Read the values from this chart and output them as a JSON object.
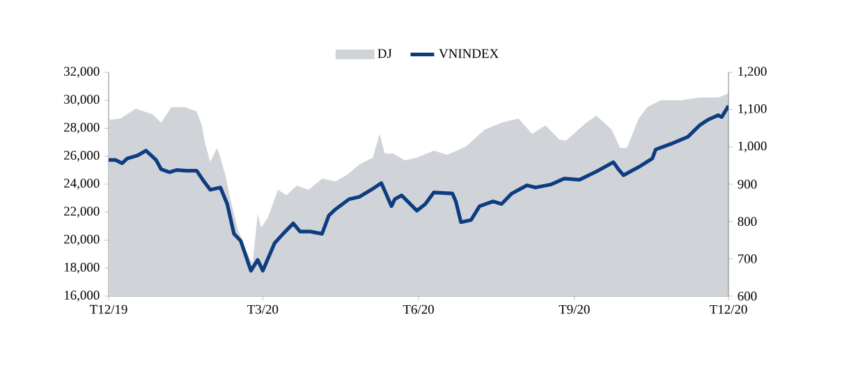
{
  "chart_data": {
    "type": "line",
    "legend": "top",
    "marker": "none",
    "line_style": "solid",
    "xlim": [
      "2019-12",
      "2020-12"
    ],
    "xticks": [
      {
        "value": "2019-12",
        "label": "T12/19"
      },
      {
        "value": "2020-03",
        "label": "T3/20"
      },
      {
        "value": "2020-06",
        "label": "T6/20"
      },
      {
        "value": "2020-09",
        "label": "T9/20"
      },
      {
        "value": "2020-12",
        "label": "T12/20"
      }
    ],
    "ylim": [
      16000,
      32000
    ],
    "yticks": [
      {
        "value": 16000,
        "label": "16,000"
      },
      {
        "value": 18000,
        "label": "18,000"
      },
      {
        "value": 20000,
        "label": "20,000"
      },
      {
        "value": 22000,
        "label": "22,000"
      },
      {
        "value": 24000,
        "label": "24,000"
      },
      {
        "value": 26000,
        "label": "26,000"
      },
      {
        "value": 28000,
        "label": "28,000"
      },
      {
        "value": 30000,
        "label": "30,000"
      },
      {
        "value": 32000,
        "label": "32,000"
      }
    ],
    "y2lim": [
      600,
      1200
    ],
    "y2ticks": [
      600,
      700,
      800,
      900,
      {
        "value": 1000,
        "label": "1,000"
      },
      {
        "value": 1100,
        "label": "1,100"
      },
      {
        "value": 1200,
        "label": "1,200"
      }
    ],
    "series": [
      {
        "name": "DJ",
        "type": "area",
        "color": "#d0d3d8",
        "x": [
          "2019-12-01",
          "2019-12-08",
          "2019-12-17",
          "2019-12-27",
          "2020-01-01",
          "2020-01-07",
          "2020-01-15",
          "2020-01-22",
          "2020-01-25",
          "2020-01-27",
          "2020-01-30",
          "2020-02-03",
          "2020-02-05",
          "2020-02-08",
          "2020-02-11",
          "2020-02-15",
          "2020-02-20",
          "2020-02-24",
          "2020-02-27",
          "2020-02-29",
          "2020-03-04",
          "2020-03-07",
          "2020-03-10",
          "2020-03-15",
          "2020-03-21",
          "2020-03-28",
          "2020-04-05",
          "2020-04-13",
          "2020-04-20",
          "2020-04-27",
          "2020-05-05",
          "2020-05-09",
          "2020-05-12",
          "2020-05-17",
          "2020-05-24",
          "2020-05-31",
          "2020-06-10",
          "2020-06-18",
          "2020-06-29",
          "2020-07-10",
          "2020-07-20",
          "2020-07-30",
          "2020-08-07",
          "2020-08-15",
          "2020-08-23",
          "2020-08-27",
          "2020-09-08",
          "2020-09-14",
          "2020-09-23",
          "2020-09-28",
          "2020-10-02",
          "2020-10-09",
          "2020-10-14",
          "2020-10-22",
          "2020-11-03",
          "2020-11-14",
          "2020-11-25",
          "2020-12-01"
        ],
        "values": [
          28600,
          28700,
          29400,
          29000,
          28400,
          29500,
          29500,
          29200,
          28200,
          26900,
          25600,
          26600,
          25900,
          24600,
          22900,
          20900,
          19300,
          18300,
          21900,
          20900,
          21600,
          22600,
          23600,
          23200,
          23900,
          23600,
          24400,
          24200,
          24700,
          25400,
          25900,
          27600,
          26200,
          26200,
          25700,
          25900,
          26400,
          26100,
          26700,
          27900,
          28400,
          28700,
          27600,
          28200,
          27200,
          27100,
          28400,
          28900,
          27900,
          26600,
          26600,
          28700,
          29500,
          30000,
          30000,
          30200,
          30200,
          30500
        ]
      },
      {
        "name": "VNINDEX",
        "axis": "y2",
        "color": "#0d3d80",
        "x": [
          "2019-12-01",
          "2019-12-05",
          "2019-12-09",
          "2019-12-12",
          "2019-12-18",
          "2019-12-23",
          "2019-12-29",
          "2020-01-01",
          "2020-01-06",
          "2020-01-10",
          "2020-01-16",
          "2020-01-22",
          "2020-01-26",
          "2020-01-30",
          "2020-02-05",
          "2020-02-09",
          "2020-02-13",
          "2020-02-17",
          "2020-02-23",
          "2020-02-27",
          "2020-03-01",
          "2020-03-08",
          "2020-03-13",
          "2020-03-19",
          "2020-03-23",
          "2020-03-29",
          "2020-04-05",
          "2020-04-09",
          "2020-04-13",
          "2020-04-21",
          "2020-04-27",
          "2020-05-04",
          "2020-05-10",
          "2020-05-13",
          "2020-05-16",
          "2020-05-18",
          "2020-05-22",
          "2020-05-31",
          "2020-06-05",
          "2020-06-10",
          "2020-06-21",
          "2020-06-23",
          "2020-06-26",
          "2020-07-02",
          "2020-07-07",
          "2020-07-15",
          "2020-07-20",
          "2020-07-26",
          "2020-08-04",
          "2020-08-09",
          "2020-08-18",
          "2020-08-26",
          "2020-09-04",
          "2020-09-14",
          "2020-09-20",
          "2020-09-24",
          "2020-09-27",
          "2020-09-30",
          "2020-10-09",
          "2020-10-17",
          "2020-10-19",
          "2020-10-28",
          "2020-11-07",
          "2020-11-14",
          "2020-11-19",
          "2020-11-25",
          "2020-11-27",
          "2020-12-01"
        ],
        "values": [
          965,
          965,
          956,
          969,
          977,
          990,
          965,
          940,
          932,
          938,
          936,
          936,
          909,
          885,
          891,
          847,
          767,
          748,
          668,
          697,
          668,
          742,
          767,
          795,
          773,
          773,
          767,
          816,
          833,
          860,
          866,
          885,
          903,
          872,
          841,
          860,
          870,
          829,
          847,
          878,
          875,
          854,
          798,
          804,
          841,
          854,
          847,
          875,
          897,
          891,
          899,
          915,
          912,
          934,
          949,
          959,
          940,
          924,
          946,
          969,
          993,
          1008,
          1027,
          1058,
          1073,
          1085,
          1080,
          1110
        ]
      }
    ]
  }
}
